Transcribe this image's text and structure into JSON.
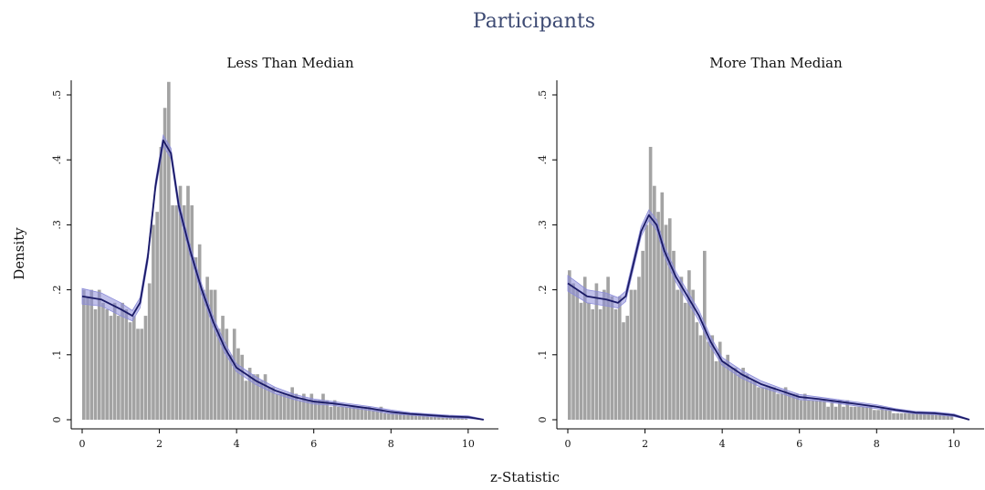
{
  "figure": {
    "title": "Participants",
    "xlabel": "z-Statistic",
    "ylabel": "Density",
    "colors": {
      "bar": "#a3a3a3",
      "line": "#1a1a66",
      "band": "#8c8cd9",
      "title": "#3d4a73"
    }
  },
  "chart_data": [
    {
      "type": "bar",
      "title": "Less Than Median",
      "xlim": [
        0,
        10.5
      ],
      "ylim": [
        0,
        0.52
      ],
      "xticks": [
        "0",
        "2",
        "4",
        "6",
        "8",
        "10"
      ],
      "yticks": [
        ".5",
        ".4",
        ".3",
        ".2",
        ".1",
        "0"
      ],
      "bin_start": 0,
      "bin_width": 0.1,
      "bars": [
        0.2,
        0.19,
        0.2,
        0.17,
        0.2,
        0.18,
        0.17,
        0.16,
        0.18,
        0.16,
        0.18,
        0.17,
        0.15,
        0.16,
        0.14,
        0.14,
        0.16,
        0.21,
        0.3,
        0.32,
        0.42,
        0.48,
        0.52,
        0.33,
        0.33,
        0.36,
        0.33,
        0.36,
        0.33,
        0.25,
        0.27,
        0.2,
        0.22,
        0.2,
        0.2,
        0.14,
        0.16,
        0.14,
        0.1,
        0.14,
        0.11,
        0.1,
        0.06,
        0.08,
        0.07,
        0.07,
        0.06,
        0.07,
        0.05,
        0.05,
        0.04,
        0.04,
        0.04,
        0.04,
        0.05,
        0.04,
        0.03,
        0.04,
        0.03,
        0.04,
        0.03,
        0.03,
        0.04,
        0.03,
        0.02,
        0.03,
        0.02,
        0.02,
        0.02,
        0.02,
        0.02,
        0.02,
        0.02,
        0.02,
        0.02,
        0.015,
        0.015,
        0.02,
        0.01,
        0.01,
        0.01,
        0.01,
        0.01,
        0.01,
        0.01,
        0.01,
        0.01,
        0.01,
        0.008,
        0.008,
        0.008,
        0.006,
        0.006,
        0.006,
        0.006,
        0.006,
        0.005,
        0.005,
        0.005,
        0.005
      ],
      "kde_x": [
        0,
        0.5,
        1,
        1.3,
        1.5,
        1.7,
        1.9,
        2.1,
        2.3,
        2.5,
        2.8,
        3.1,
        3.4,
        3.7,
        4,
        4.5,
        5,
        5.5,
        6,
        6.5,
        7,
        7.5,
        8,
        8.5,
        9,
        9.5,
        10,
        10.4
      ],
      "kde_y": [
        0.19,
        0.185,
        0.17,
        0.16,
        0.18,
        0.25,
        0.36,
        0.43,
        0.41,
        0.33,
        0.26,
        0.2,
        0.15,
        0.11,
        0.08,
        0.06,
        0.045,
        0.035,
        0.028,
        0.025,
        0.021,
        0.017,
        0.012,
        0.009,
        0.007,
        0.005,
        0.004,
        0
      ],
      "band_halfwidth": [
        0.012,
        0.01,
        0.01,
        0.008,
        0.008,
        0.008,
        0.008,
        0.008,
        0.008,
        0.008,
        0.008,
        0.008,
        0.008,
        0.008,
        0.006,
        0.006,
        0.005,
        0.004,
        0.004,
        0.003,
        0.003,
        0.003,
        0.003,
        0.002,
        0.002,
        0.002,
        0.002,
        0.001
      ]
    },
    {
      "type": "bar",
      "title": "More Than Median",
      "xlim": [
        0,
        10.5
      ],
      "ylim": [
        0,
        0.52
      ],
      "xticks": [
        "0",
        "2",
        "4",
        "6",
        "8",
        "10"
      ],
      "yticks": [
        ".5",
        ".4",
        ".3",
        ".2",
        ".1",
        "0"
      ],
      "bin_start": 0,
      "bin_width": 0.1,
      "bars": [
        0.23,
        0.21,
        0.2,
        0.18,
        0.22,
        0.18,
        0.17,
        0.21,
        0.17,
        0.2,
        0.22,
        0.19,
        0.17,
        0.19,
        0.15,
        0.16,
        0.2,
        0.2,
        0.22,
        0.26,
        0.3,
        0.42,
        0.36,
        0.32,
        0.35,
        0.3,
        0.31,
        0.26,
        0.2,
        0.22,
        0.18,
        0.23,
        0.2,
        0.15,
        0.13,
        0.26,
        0.12,
        0.13,
        0.09,
        0.12,
        0.09,
        0.1,
        0.08,
        0.08,
        0.07,
        0.08,
        0.07,
        0.06,
        0.06,
        0.05,
        0.05,
        0.05,
        0.05,
        0.05,
        0.04,
        0.04,
        0.05,
        0.04,
        0.04,
        0.04,
        0.03,
        0.04,
        0.03,
        0.03,
        0.03,
        0.03,
        0.03,
        0.02,
        0.03,
        0.02,
        0.03,
        0.02,
        0.03,
        0.02,
        0.02,
        0.02,
        0.02,
        0.02,
        0.02,
        0.015,
        0.015,
        0.02,
        0.015,
        0.015,
        0.01,
        0.01,
        0.01,
        0.01,
        0.01,
        0.01,
        0.01,
        0.01,
        0.01,
        0.01,
        0.01,
        0.01,
        0.01,
        0.01,
        0.01,
        0.008
      ],
      "kde_x": [
        0,
        0.5,
        1,
        1.3,
        1.5,
        1.7,
        1.9,
        2.1,
        2.3,
        2.5,
        2.8,
        3.1,
        3.4,
        3.7,
        4,
        4.5,
        5,
        5.5,
        6,
        6.5,
        7,
        7.5,
        8,
        8.5,
        9,
        9.5,
        10,
        10.4
      ],
      "kde_y": [
        0.21,
        0.19,
        0.185,
        0.18,
        0.19,
        0.24,
        0.29,
        0.315,
        0.3,
        0.26,
        0.22,
        0.19,
        0.16,
        0.12,
        0.09,
        0.07,
        0.055,
        0.045,
        0.035,
        0.032,
        0.028,
        0.024,
        0.02,
        0.015,
        0.011,
        0.01,
        0.007,
        0
      ],
      "band_halfwidth": [
        0.012,
        0.01,
        0.01,
        0.008,
        0.008,
        0.008,
        0.008,
        0.008,
        0.008,
        0.008,
        0.008,
        0.008,
        0.008,
        0.008,
        0.006,
        0.006,
        0.005,
        0.004,
        0.004,
        0.003,
        0.003,
        0.003,
        0.003,
        0.002,
        0.002,
        0.002,
        0.002,
        0.001
      ]
    }
  ]
}
